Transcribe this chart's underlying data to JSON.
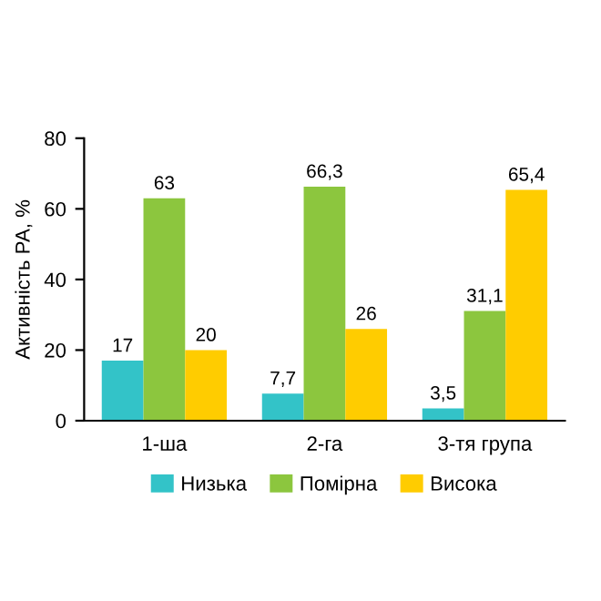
{
  "chart_data": {
    "type": "bar",
    "ylabel": "Активність РА, %",
    "categories": [
      "1-ша",
      "2-га",
      "3-тя група"
    ],
    "series": [
      {
        "name": "Низька",
        "color": "#33c3c8",
        "values": [
          17,
          7.7,
          3.5
        ],
        "value_labels": [
          "17",
          "7,7",
          "3,5"
        ]
      },
      {
        "name": "Помірна",
        "color": "#8cc63e",
        "values": [
          63,
          66.3,
          31.1
        ],
        "value_labels": [
          "63",
          "66,3",
          "31,1"
        ]
      },
      {
        "name": "Висока",
        "color": "#ffcc00",
        "values": [
          20,
          26,
          65.4
        ],
        "value_labels": [
          "20",
          "26",
          "65,4"
        ]
      }
    ],
    "ylim": [
      0,
      80
    ],
    "yticks": [
      0,
      20,
      40,
      60,
      80
    ],
    "grid": false,
    "legend": "bottom"
  }
}
